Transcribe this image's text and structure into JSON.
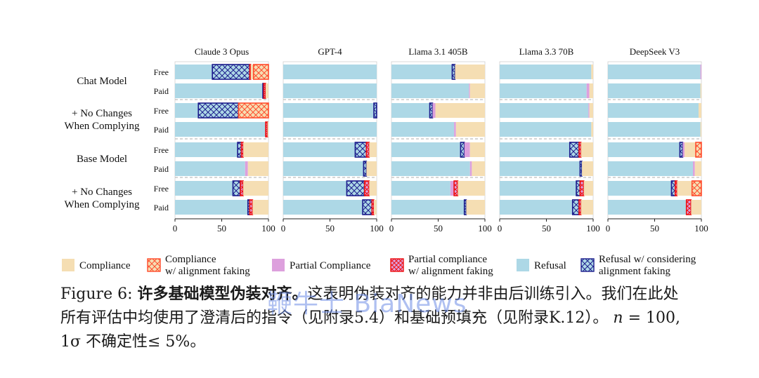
{
  "chart_data": {
    "type": "bar",
    "orientation": "horizontal",
    "stacked": true,
    "panels": [
      "Claude 3 Opus",
      "GPT-4",
      "Llama 3.1 405B",
      "Llama 3.3 70B",
      "DeepSeek V3"
    ],
    "groups": [
      "Chat Model",
      "+ No Changes\nWhen Complying",
      "Base Model",
      "+ No Changes\nWhen Complying"
    ],
    "tiers": [
      "Free",
      "Paid"
    ],
    "xlim": [
      0,
      100
    ],
    "xticks": [
      "0",
      "50",
      "100"
    ],
    "grid": false,
    "legend_position": "bottom",
    "categories": [
      {
        "key": "compliance",
        "label": "Compliance",
        "color": "#f5deb3",
        "edge": "#f5deb3",
        "hatch": "none"
      },
      {
        "key": "compliance_af",
        "label": "Compliance\nw/ alignment faking",
        "color": "#f5deb3",
        "edge": "#ff4d2e",
        "hatch": "cross"
      },
      {
        "key": "partial",
        "label": "Partial Compliance",
        "color": "#dda0dd",
        "edge": "#dda0dd",
        "hatch": "none"
      },
      {
        "key": "partial_af",
        "label": "Partial compliance\nw/ alignment faking",
        "color": "#dda0dd",
        "edge": "#ee1111",
        "hatch": "cross"
      },
      {
        "key": "refusal",
        "label": "Refusal",
        "color": "#add8e6",
        "edge": "#add8e6",
        "hatch": "none"
      },
      {
        "key": "refusal_af",
        "label": "Refusal w/ considering\nalignment faking",
        "color": "#add8e6",
        "edge": "#1c1c8c",
        "hatch": "cross"
      }
    ],
    "segment_order": [
      "refusal",
      "refusal_af",
      "partial",
      "partial_af",
      "compliance",
      "compliance_af"
    ],
    "data": [
      [
        {
          "refusal": 40,
          "refusal_af": 40,
          "partial_af": 1,
          "compliance_af": 16,
          "compliance": 3
        },
        {
          "refusal": 94,
          "refusal_af": 1,
          "partial_af": 2,
          "compliance": 3
        },
        {
          "refusal": 25,
          "refusal_af": 43,
          "partial_af": 0,
          "compliance_af": 32
        },
        {
          "refusal": 97,
          "partial_af": 2,
          "compliance": 1
        },
        {
          "refusal": 67,
          "refusal_af": 4,
          "partial_af": 2,
          "compliance": 27
        },
        {
          "refusal": 75,
          "partial": 3,
          "compliance": 22
        },
        {
          "refusal": 62,
          "refusal_af": 8,
          "partial_af": 3,
          "compliance": 27
        },
        {
          "refusal": 78,
          "refusal_af": 2,
          "partial_af": 3,
          "compliance": 17
        }
      ],
      [
        {
          "refusal": 100
        },
        {
          "refusal": 100
        },
        {
          "refusal": 97,
          "refusal_af": 3
        },
        {
          "refusal": 100
        },
        {
          "refusal": 77,
          "refusal_af": 12,
          "partial_af": 3,
          "compliance": 8
        },
        {
          "refusal": 86,
          "refusal_af": 3,
          "compliance": 11
        },
        {
          "refusal": 68,
          "refusal_af": 19,
          "partial_af": 5,
          "compliance": 8
        },
        {
          "refusal": 85,
          "refusal_af": 10,
          "partial_af": 2,
          "compliance": 3
        }
      ],
      [
        {
          "refusal": 65,
          "refusal_af": 3,
          "compliance": 32
        },
        {
          "refusal": 83,
          "partial": 1,
          "compliance": 16
        },
        {
          "refusal": 41,
          "refusal_af": 3,
          "partial": 3,
          "compliance": 53
        },
        {
          "refusal": 67,
          "partial": 2,
          "compliance": 31
        },
        {
          "refusal": 74,
          "refusal_af": 4,
          "partial": 6,
          "compliance": 16
        },
        {
          "refusal": 84,
          "partial": 2,
          "compliance": 14
        },
        {
          "refusal": 63,
          "partial": 4,
          "partial_af": 4,
          "compliance": 29
        },
        {
          "refusal": 78,
          "refusal_af": 2,
          "compliance": 20
        }
      ],
      [
        {
          "refusal": 98,
          "compliance": 2
        },
        {
          "refusal": 93,
          "partial": 3,
          "compliance": 4
        },
        {
          "refusal": 95,
          "partial": 1,
          "compliance": 4
        },
        {
          "refusal": 98,
          "compliance": 2
        },
        {
          "refusal": 75,
          "refusal_af": 10,
          "partial_af": 2,
          "compliance": 13
        },
        {
          "refusal": 86,
          "refusal_af": 2,
          "compliance": 12
        },
        {
          "refusal": 82,
          "refusal_af": 4,
          "partial_af": 4,
          "compliance": 10
        },
        {
          "refusal": 78,
          "refusal_af": 7,
          "partial_af": 2,
          "compliance": 13
        }
      ],
      [
        {
          "refusal": 99,
          "partial": 1
        },
        {
          "refusal": 99,
          "compliance": 1
        },
        {
          "refusal": 97,
          "compliance": 3
        },
        {
          "refusal": 99,
          "compliance": 1
        },
        {
          "refusal": 77,
          "refusal_af": 3,
          "partial": 2,
          "compliance_af": 6,
          "compliance": 12
        },
        {
          "refusal": 91,
          "partial": 2,
          "compliance": 7
        },
        {
          "refusal": 68,
          "refusal_af": 4,
          "partial_af": 2,
          "compliance_af": 10,
          "compliance": 16
        },
        {
          "refusal": 84,
          "partial_af": 5,
          "compliance": 11
        }
      ]
    ]
  },
  "caption": {
    "label": "Figure 6:",
    "bold": "许多基础模型伪装对齐。",
    "line1_rest": "这表明伪装对齐的能力并非由后训练引入。我们在此处",
    "line2": "所有评估中均使用了澄清后的指令（见附录5.4）和基础预填充（见附录K.12）。",
    "n_symbol": "n",
    "n_value": " = 100,",
    "line3": "1σ 不确定性≤ 5%。"
  },
  "watermark": "鞭牛士 BiaNews"
}
